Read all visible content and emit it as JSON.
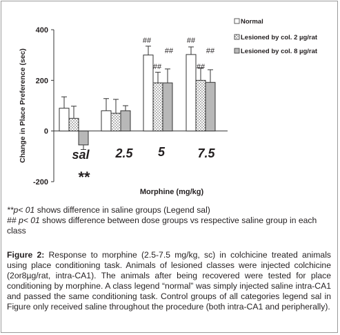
{
  "chart_data": {
    "type": "bar",
    "ylabel": "Change in Place Preference (sec)",
    "xlabel": "Morphine (mg/kg)",
    "ylim": [
      -200,
      400
    ],
    "yticks": [
      "400",
      "200",
      "0",
      "-200"
    ],
    "categories": [
      "sal",
      "2.5",
      "5",
      "7.5"
    ],
    "legend_position": "top-right",
    "series": [
      {
        "name": "Normal",
        "color": "#ffffff",
        "pattern": "none",
        "values": [
          90,
          80,
          300,
          302
        ],
        "errors": [
          45,
          48,
          35,
          30
        ]
      },
      {
        "name": "Lesioned by col. 2 µg/rat",
        "color": "#ffffff",
        "pattern": "dots",
        "values": [
          50,
          70,
          190,
          200
        ],
        "errors": [
          48,
          55,
          42,
          48
        ]
      },
      {
        "name": "Lesioned by col. 8 µg/rat",
        "color": "#b8b8b8",
        "pattern": "none",
        "values": [
          -55,
          80,
          190,
          192
        ],
        "errors": [
          18,
          20,
          55,
          50
        ]
      }
    ],
    "annotations": [
      {
        "category": "5",
        "series": 0,
        "text": "##"
      },
      {
        "category": "5",
        "series": 1,
        "text": "##"
      },
      {
        "category": "5",
        "series": 2,
        "text": "##"
      },
      {
        "category": "7.5",
        "series": 0,
        "text": "##"
      },
      {
        "category": "7.5",
        "series": 1,
        "text": "##"
      },
      {
        "category": "7.5",
        "series": 2,
        "text": "##"
      },
      {
        "category": "sal",
        "series": null,
        "text": "**"
      }
    ]
  },
  "notes": {
    "line1_italic": "**p< 01",
    "line1_rest": " shows difference in saline groups (Legend sal)",
    "line2_italic": "## p< 01",
    "line2_rest": " shows difference between dose groups vs respective saline group in each class"
  },
  "caption": {
    "label": "Figure 2:",
    "text": " Response to morphine (2.5-7.5 mg/kg, sc) in colchicine treated animals using place conditioning task. Animals of lesioned classes were injected colchicine (2or8µg/rat, intra-CA1). The animals after being recovered were tested for place conditioning by morphine. A class legend “normal” was simply injected saline intra-CA1 and passed the same conditioning task. Control groups of all categories legend sal in Figure only received saline throughout the procedure (both intra-CA1 and peripherally)."
  }
}
